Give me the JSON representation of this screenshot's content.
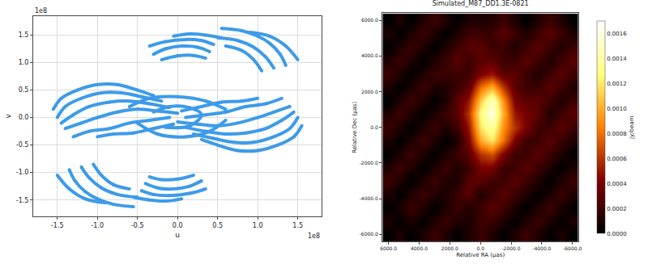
{
  "chart_data": [
    {
      "type": "scatter",
      "x_label": "u",
      "y_label": "v",
      "x_offset_text": "1e8",
      "y_offset_text": "1e8",
      "color": "#3d9be9",
      "marker": "circle",
      "grid": true,
      "xlim": [
        -1.8,
        1.8
      ],
      "ylim": [
        -1.8,
        1.85
      ],
      "xticks": [
        -1.5,
        {
          "value": -1.0,
          "label": "-1.0"
        },
        -0.5,
        {
          "value": 0.0,
          "label": "0.0"
        },
        0.5,
        {
          "value": 1.0,
          "label": "1.0"
        },
        1.5
      ],
      "yticks": [
        -1.5,
        {
          "value": -1.0,
          "label": "-1.0"
        },
        -0.5,
        {
          "value": 0.0,
          "label": "0.0"
        },
        0.5,
        {
          "value": 1.0,
          "label": "1.0"
        },
        1.5
      ],
      "series": [
        {
          "x": [
            -1.55,
            -1.45,
            -1.25,
            -1.0,
            -0.75,
            -0.5,
            -0.3
          ],
          "values": [
            0.15,
            0.35,
            0.5,
            0.6,
            0.6,
            0.5,
            0.4
          ]
        },
        {
          "x": [
            -1.5,
            -1.4,
            -1.2,
            -0.95,
            -0.7,
            -0.45,
            -0.2
          ],
          "values": [
            0.0,
            0.2,
            0.35,
            0.45,
            0.45,
            0.38,
            0.3
          ]
        },
        {
          "x": [
            -1.45,
            -1.3,
            -1.1,
            -0.85,
            -0.6,
            -0.35,
            -0.1
          ],
          "values": [
            -0.1,
            0.05,
            0.2,
            0.28,
            0.3,
            0.25,
            0.18
          ]
        },
        {
          "x": [
            -1.4,
            -1.2,
            -1.0,
            -0.75,
            -0.5,
            -0.25,
            0.0
          ],
          "values": [
            -0.2,
            -0.1,
            0.0,
            0.1,
            0.15,
            0.12,
            0.08
          ]
        },
        {
          "x": [
            -1.3,
            -1.1,
            -0.85,
            -0.6,
            -0.35,
            -0.1
          ],
          "values": [
            -0.35,
            -0.25,
            -0.2,
            -0.1,
            -0.05,
            0.0
          ]
        },
        {
          "x": [
            -1.0,
            -0.8,
            -0.55,
            -0.3,
            -0.05
          ],
          "values": [
            -0.35,
            -0.3,
            -0.28,
            -0.2,
            -0.12
          ]
        },
        {
          "x": [
            1.55,
            1.45,
            1.25,
            1.0,
            0.75,
            0.5,
            0.3
          ],
          "values": [
            -0.15,
            -0.35,
            -0.5,
            -0.6,
            -0.6,
            -0.5,
            -0.4
          ]
        },
        {
          "x": [
            1.5,
            1.4,
            1.2,
            0.95,
            0.7,
            0.45,
            0.2
          ],
          "values": [
            0.0,
            -0.2,
            -0.35,
            -0.45,
            -0.45,
            -0.38,
            -0.3
          ]
        },
        {
          "x": [
            1.45,
            1.3,
            1.1,
            0.85,
            0.6,
            0.35,
            0.1
          ],
          "values": [
            0.1,
            -0.05,
            -0.2,
            -0.28,
            -0.3,
            -0.25,
            -0.18
          ]
        },
        {
          "x": [
            1.4,
            1.2,
            1.0,
            0.75,
            0.5,
            0.25,
            0.0
          ],
          "values": [
            0.2,
            0.1,
            0.0,
            -0.1,
            -0.15,
            -0.12,
            -0.08
          ]
        },
        {
          "x": [
            1.3,
            1.1,
            0.85,
            0.6,
            0.35,
            0.1
          ],
          "values": [
            0.35,
            0.25,
            0.2,
            0.1,
            0.05,
            0.0
          ]
        },
        {
          "x": [
            1.0,
            0.8,
            0.55,
            0.3,
            0.05
          ],
          "values": [
            0.35,
            0.3,
            0.28,
            0.2,
            0.12
          ]
        },
        {
          "x": [
            -0.6,
            -0.35,
            0.0,
            0.35,
            0.6
          ],
          "values": [
            0.2,
            0.35,
            0.38,
            0.3,
            0.15
          ]
        },
        {
          "x": [
            -0.5,
            -0.25,
            0.1,
            0.4,
            0.6
          ],
          "values": [
            -0.1,
            -0.3,
            -0.35,
            -0.25,
            -0.05
          ]
        },
        {
          "x": [
            -0.3,
            -0.1,
            0.15,
            0.3,
            0.15,
            -0.15
          ],
          "values": [
            0.1,
            0.2,
            0.18,
            0.05,
            -0.15,
            -0.18
          ]
        },
        {
          "x": [
            -0.3,
            -0.15,
            0.05,
            0.25,
            0.4
          ],
          "values": [
            1.15,
            1.25,
            1.3,
            1.28,
            1.2
          ]
        },
        {
          "x": [
            -0.35,
            -0.15,
            0.1,
            0.3,
            0.45
          ],
          "values": [
            1.3,
            1.38,
            1.42,
            1.4,
            1.33
          ]
        },
        {
          "x": [
            -0.2,
            0.0,
            0.2,
            0.35
          ],
          "values": [
            1.05,
            1.12,
            1.13,
            1.08
          ]
        },
        {
          "x": [
            -0.05,
            0.15,
            0.35,
            0.55
          ],
          "values": [
            1.48,
            1.52,
            1.5,
            1.45
          ]
        },
        {
          "x": [
            0.55,
            0.8,
            1.0,
            1.15,
            1.28,
            1.35
          ],
          "values": [
            1.62,
            1.58,
            1.48,
            1.35,
            1.15,
            0.95
          ]
        },
        {
          "x": [
            0.5,
            0.75,
            0.95,
            1.1,
            1.2
          ],
          "values": [
            1.45,
            1.4,
            1.28,
            1.1,
            0.9
          ]
        },
        {
          "x": [
            0.6,
            0.8,
            0.95,
            1.05
          ],
          "values": [
            1.3,
            1.22,
            1.05,
            0.85
          ]
        },
        {
          "x": [
            0.9,
            1.15,
            1.35,
            1.5
          ],
          "values": [
            1.55,
            1.48,
            1.3,
            1.05
          ]
        },
        {
          "x": [
            0.3,
            0.15,
            -0.05,
            -0.25,
            -0.4
          ],
          "values": [
            -1.15,
            -1.25,
            -1.3,
            -1.28,
            -1.2
          ]
        },
        {
          "x": [
            0.35,
            0.15,
            -0.1,
            -0.3,
            -0.45
          ],
          "values": [
            -1.3,
            -1.38,
            -1.42,
            -1.4,
            -1.33
          ]
        },
        {
          "x": [
            0.2,
            0.0,
            -0.2,
            -0.35
          ],
          "values": [
            -1.05,
            -1.12,
            -1.13,
            -1.08
          ]
        },
        {
          "x": [
            0.05,
            -0.15,
            -0.35,
            -0.55
          ],
          "values": [
            -1.48,
            -1.52,
            -1.5,
            -1.45
          ]
        },
        {
          "x": [
            -0.55,
            -0.8,
            -1.0,
            -1.15,
            -1.28,
            -1.35
          ],
          "values": [
            -1.62,
            -1.58,
            -1.48,
            -1.35,
            -1.15,
            -0.95
          ]
        },
        {
          "x": [
            -0.5,
            -0.75,
            -0.95,
            -1.1,
            -1.2
          ],
          "values": [
            -1.45,
            -1.4,
            -1.28,
            -1.1,
            -0.9
          ]
        },
        {
          "x": [
            -0.6,
            -0.8,
            -0.95,
            -1.05
          ],
          "values": [
            -1.3,
            -1.22,
            -1.05,
            -0.85
          ]
        },
        {
          "x": [
            -0.9,
            -1.15,
            -1.35,
            -1.5
          ],
          "values": [
            -1.55,
            -1.48,
            -1.3,
            -1.05
          ]
        }
      ]
    },
    {
      "type": "heatmap",
      "title": "Simulated_M87_DD1.3E-0821",
      "x_label": "Relative RA (μas)",
      "y_label": "Relative Dec (μas)",
      "xlim": [
        6400,
        -6400
      ],
      "ylim": [
        -6400,
        6400
      ],
      "xticks": [
        {
          "value": 6000,
          "label": "6000.0"
        },
        {
          "value": 4000,
          "label": "4000.0"
        },
        {
          "value": 2000,
          "label": "2000.0"
        },
        {
          "value": 0,
          "label": "0.0"
        },
        {
          "value": -2000,
          "label": "-2000.0"
        },
        {
          "value": -4000,
          "label": "-4000.0"
        },
        {
          "value": -6000,
          "label": "-6000.0"
        }
      ],
      "yticks": [
        {
          "value": 6000,
          "label": "6000.0"
        },
        {
          "value": 4000,
          "label": "4000.0"
        },
        {
          "value": 2000,
          "label": "2000.0"
        },
        {
          "value": 0,
          "label": "0.0"
        },
        {
          "value": -2000,
          "label": "-2000.0"
        },
        {
          "value": -4000,
          "label": "-4000.0"
        },
        {
          "value": -6000,
          "label": "-6000.0"
        }
      ],
      "x": [
        -6000,
        -5250,
        -4500,
        -3750,
        -3000,
        -2250,
        -1500,
        -750,
        0,
        750,
        1500,
        2250,
        3000,
        3750,
        4500,
        5250,
        6000
      ],
      "y": [
        -6000,
        -5250,
        -4500,
        -3750,
        -3000,
        -2250,
        -1500,
        -750,
        0,
        750,
        1500,
        2250,
        3000,
        3750,
        4500,
        5250,
        6000
      ],
      "cells": [
        [
          0,
          0.0001,
          0,
          0.0001,
          0.0002,
          0.0001,
          0,
          0.0001,
          0.0002,
          0.0001,
          0,
          0.0001,
          0.0002,
          0.0001,
          0,
          0.0001,
          0
        ],
        [
          0.0001,
          0,
          0.0001,
          0.0002,
          0.0001,
          0,
          0.0001,
          0.0002,
          0.0002,
          0.0001,
          0.0001,
          0.0002,
          0.0001,
          0,
          0.0001,
          0,
          0.0001
        ],
        [
          0,
          0.0001,
          0.0002,
          0.0001,
          0,
          0.0001,
          0.0002,
          0.0003,
          0.0002,
          0.0001,
          0.0002,
          0.0001,
          0,
          0.0001,
          0.0002,
          0.0001,
          0
        ],
        [
          0.0001,
          0.0002,
          0.0001,
          0,
          0.0001,
          0.0002,
          0.0003,
          0.0002,
          0.0001,
          0.0003,
          0.0002,
          0.0001,
          0.0001,
          0.0002,
          0.0001,
          0,
          0.0001
        ],
        [
          0.0002,
          0.0001,
          0,
          0.0001,
          0.0002,
          0.0003,
          0.0002,
          0.0002,
          0.0003,
          0.0003,
          0.0001,
          0.0001,
          0.0002,
          0.0001,
          0,
          0.0001,
          0.0002
        ],
        [
          0.0001,
          0,
          0.0001,
          0.0002,
          0.0003,
          0.0002,
          0.0002,
          0.0004,
          0.0004,
          0.0002,
          0.0001,
          0.0002,
          0.0001,
          0,
          0.0001,
          0.0002,
          0.0001
        ],
        [
          0,
          0.0001,
          0.0002,
          0.0003,
          0.0002,
          0.0002,
          0.0004,
          0.0007,
          0.0006,
          0.0003,
          0.0002,
          0.0001,
          0,
          0.0001,
          0.0002,
          0.0001,
          0
        ],
        [
          0.0001,
          0.0002,
          0.0003,
          0.0002,
          0.0002,
          0.0004,
          0.0008,
          0.0012,
          0.001,
          0.0004,
          0.0001,
          0,
          0.0001,
          0.0002,
          0.0001,
          0,
          0.0001
        ],
        [
          0.0002,
          0.0003,
          0.0002,
          0.0002,
          0.0004,
          0.0006,
          0.0009,
          0.0014,
          0.0012,
          0.0005,
          0.0002,
          0.0001,
          0.0002,
          0.0001,
          0,
          0.0001,
          0.0002
        ],
        [
          0.0003,
          0.0002,
          0.0001,
          0.0003,
          0.0004,
          0.0005,
          0.001,
          0.0016,
          0.0013,
          0.0006,
          0.0003,
          0.0002,
          0.0001,
          0,
          0.0001,
          0.0002,
          0.0001
        ],
        [
          0.0002,
          0.0001,
          0.0002,
          0.0003,
          0.0003,
          0.0004,
          0.0009,
          0.0015,
          0.0011,
          0.0005,
          0.0003,
          0.0001,
          0,
          0.0001,
          0.0002,
          0.0001,
          0
        ],
        [
          0.0001,
          0.0002,
          0.0003,
          0.0002,
          0.0002,
          0.0003,
          0.0006,
          0.001,
          0.0008,
          0.0003,
          0.0002,
          0.0001,
          0.0001,
          0.0002,
          0.0001,
          0,
          0.0001
        ],
        [
          0.0002,
          0.0003,
          0.0002,
          0.0001,
          0.0002,
          0.0003,
          0.0003,
          0.0005,
          0.0004,
          0.0002,
          0.0002,
          0.0002,
          0.0002,
          0.0001,
          0,
          0.0001,
          0.0002
        ],
        [
          0.0003,
          0.0002,
          0.0001,
          0.0002,
          0.0003,
          0.0002,
          0.0002,
          0.0003,
          0.0003,
          0.0002,
          0.0003,
          0.0002,
          0.0001,
          0,
          0.0001,
          0.0002,
          0.0001
        ],
        [
          0.0002,
          0.0001,
          0.0002,
          0.0003,
          0.0002,
          0.0001,
          0.0002,
          0.0002,
          0.0003,
          0.0003,
          0.0002,
          0.0001,
          0,
          0.0001,
          0.0002,
          0.0001,
          0
        ],
        [
          0.0001,
          0.0002,
          0.0003,
          0.0002,
          0.0001,
          0.0002,
          0.0003,
          0.0002,
          0.0002,
          0.0002,
          0.0001,
          0,
          0.0001,
          0.0002,
          0.0001,
          0,
          0.0001
        ],
        [
          0,
          0.0001,
          0.0002,
          0.0001,
          0,
          0.0001,
          0.0002,
          0.0001,
          0.0001,
          0.0001,
          0,
          0.0001,
          0.0002,
          0.0001,
          0,
          0.0001,
          0
        ]
      ],
      "colorbar_range": [
        0,
        0.0017
      ],
      "colorbar_ticks": [
        {
          "value": 0,
          "label": "0.0000"
        },
        {
          "value": 0.0002,
          "label": "0.0002"
        },
        {
          "value": 0.0004,
          "label": "0.0004"
        },
        {
          "value": 0.0006,
          "label": "0.0006"
        },
        {
          "value": 0.0008,
          "label": "0.0008"
        },
        {
          "value": 0.001,
          "label": "0.0010"
        },
        {
          "value": 0.0012,
          "label": "0.0012"
        },
        {
          "value": 0.0014,
          "label": "0.0014"
        },
        {
          "value": 0.0016,
          "label": "0.0016"
        }
      ],
      "colorbar_title": "Jy/beam"
    }
  ]
}
